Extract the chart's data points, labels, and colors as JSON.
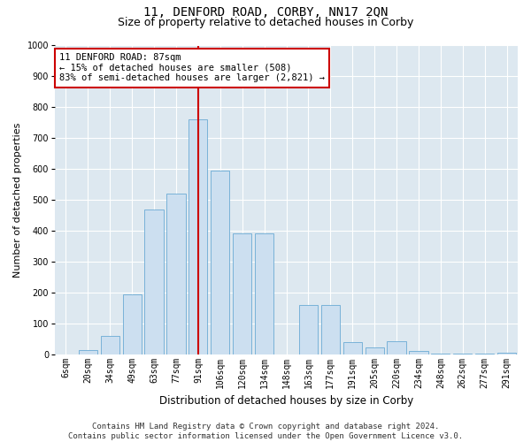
{
  "title": "11, DENFORD ROAD, CORBY, NN17 2QN",
  "subtitle": "Size of property relative to detached houses in Corby",
  "xlabel": "Distribution of detached houses by size in Corby",
  "ylabel": "Number of detached properties",
  "categories": [
    "6sqm",
    "20sqm",
    "34sqm",
    "49sqm",
    "63sqm",
    "77sqm",
    "91sqm",
    "106sqm",
    "120sqm",
    "134sqm",
    "148sqm",
    "163sqm",
    "177sqm",
    "191sqm",
    "205sqm",
    "220sqm",
    "234sqm",
    "248sqm",
    "262sqm",
    "277sqm",
    "291sqm"
  ],
  "values": [
    0,
    12,
    60,
    195,
    470,
    520,
    760,
    595,
    390,
    390,
    0,
    158,
    158,
    38,
    22,
    42,
    10,
    2,
    2,
    1,
    5
  ],
  "bar_color": "#ccdff0",
  "bar_edge_color": "#6aaad4",
  "vline_x": 6,
  "vline_color": "#cc0000",
  "annotation_text": "11 DENFORD ROAD: 87sqm\n← 15% of detached houses are smaller (508)\n83% of semi-detached houses are larger (2,821) →",
  "annotation_box_color": "#cc0000",
  "ylim": [
    0,
    1000
  ],
  "yticks": [
    0,
    100,
    200,
    300,
    400,
    500,
    600,
    700,
    800,
    900,
    1000
  ],
  "background_color": "#dde8f0",
  "footer_text": "Contains HM Land Registry data © Crown copyright and database right 2024.\nContains public sector information licensed under the Open Government Licence v3.0.",
  "title_fontsize": 10,
  "subtitle_fontsize": 9,
  "annotation_fontsize": 7.5,
  "xlabel_fontsize": 8.5,
  "ylabel_fontsize": 8,
  "tick_fontsize": 7,
  "footer_fontsize": 6.5
}
